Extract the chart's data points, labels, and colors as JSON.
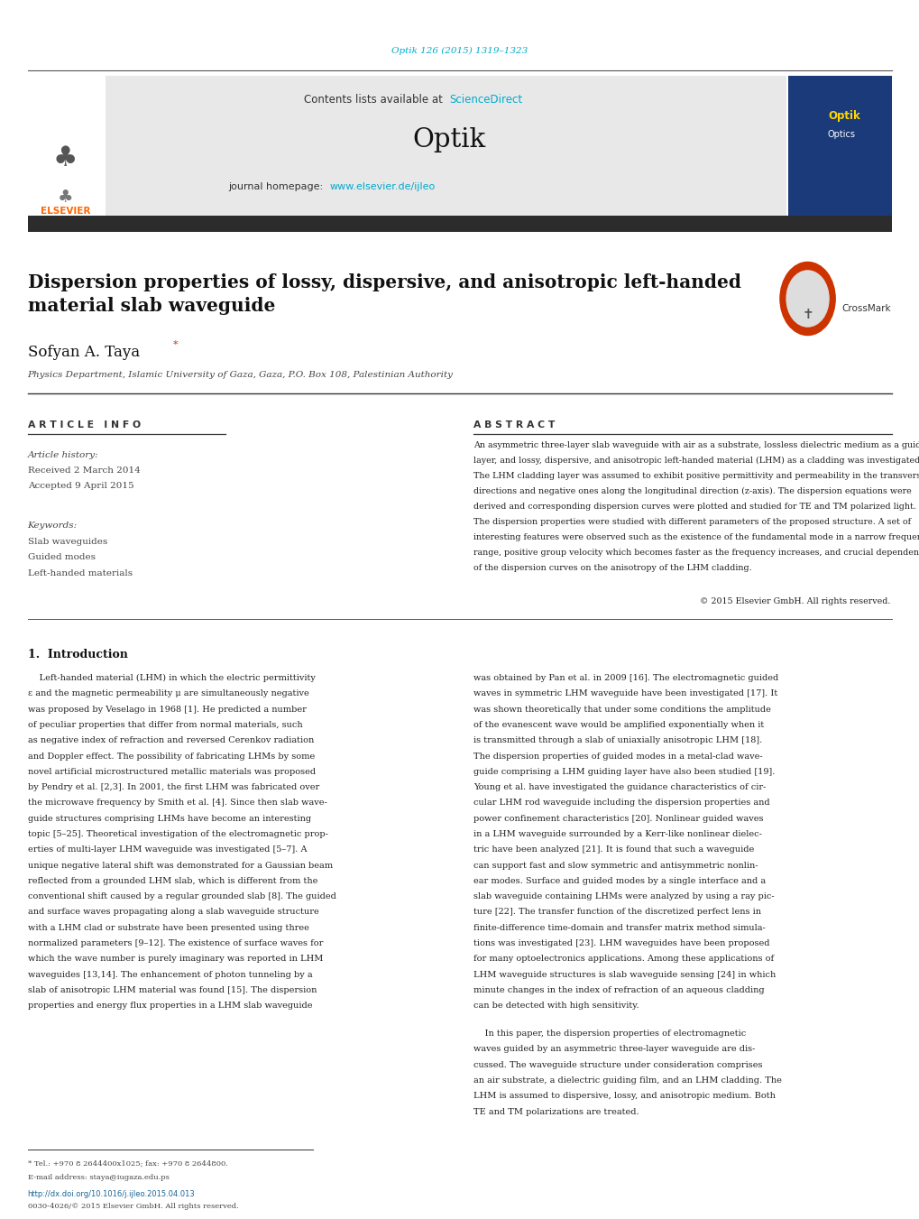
{
  "page_width": 10.2,
  "page_height": 13.51,
  "bg_color": "#ffffff",
  "top_citation": "Optik 126 (2015) 1319–1323",
  "citation_color": "#00aacc",
  "journal_title": "Optik",
  "contents_text": "Contents lists available at ",
  "sciencedirect_text": "ScienceDirect",
  "sciencedirect_color": "#00aacc",
  "homepage_text": "journal homepage: ",
  "homepage_url": "www.elsevier.de/ijleo",
  "homepage_url_color": "#00aacc",
  "header_bg": "#e8e8e8",
  "dark_bar_color": "#2c2c2c",
  "elsevier_color": "#ff6600",
  "paper_title": "Dispersion properties of lossy, dispersive, and anisotropic left-handed\nmaterial slab waveguide",
  "author_name": "Sofyan A. Taya",
  "affiliation": "Physics Department, Islamic University of Gaza, Gaza, P.O. Box 108, Palestinian Authority",
  "article_info_title": "A R T I C L E   I N F O",
  "abstract_title": "A B S T R A C T",
  "article_history_label": "Article history:",
  "received_text": "Received 2 March 2014",
  "accepted_text": "Accepted 9 April 2015",
  "keywords_label": "Keywords:",
  "keywords": [
    "Slab waveguides",
    "Guided modes",
    "Left-handed materials"
  ],
  "copyright_text": "© 2015 Elsevier GmbH. All rights reserved.",
  "section1_title": "1.  Introduction",
  "footnote1": "* Tel.: +970 8 2644400x1025; fax: +970 8 2644800.",
  "footnote2": "E-mail address: staya@iugaza.edu.ps",
  "doi_text": "http://dx.doi.org/10.1016/j.ijleo.2015.04.013",
  "issn_text": "0030-4026/© 2015 Elsevier GmbH. All rights reserved.",
  "link_color": "#1a6496",
  "abstract_lines": [
    "An asymmetric three-layer slab waveguide with air as a substrate, lossless dielectric medium as a guiding",
    "layer, and lossy, dispersive, and anisotropic left-handed material (LHM) as a cladding was investigated.",
    "The LHM cladding layer was assumed to exhibit positive permittivity and permeability in the transverse",
    "directions and negative ones along the longitudinal direction (z-axis). The dispersion equations were",
    "derived and corresponding dispersion curves were plotted and studied for TE and TM polarized light.",
    "The dispersion properties were studied with different parameters of the proposed structure. A set of",
    "interesting features were observed such as the existence of the fundamental mode in a narrow frequency",
    "range, positive group velocity which becomes faster as the frequency increases, and crucial dependence",
    "of the dispersion curves on the anisotropy of the LHM cladding."
  ],
  "intro_left_lines": [
    "    Left-handed material (LHM) in which the electric permittivity",
    "ε and the magnetic permeability μ are simultaneously negative",
    "was proposed by Veselago in 1968 [1]. He predicted a number",
    "of peculiar properties that differ from normal materials, such",
    "as negative index of refraction and reversed Cerenkov radiation",
    "and Doppler effect. The possibility of fabricating LHMs by some",
    "novel artificial microstructured metallic materials was proposed",
    "by Pendry et al. [2,3]. In 2001, the first LHM was fabricated over",
    "the microwave frequency by Smith et al. [4]. Since then slab wave-",
    "guide structures comprising LHMs have become an interesting",
    "topic [5–25]. Theoretical investigation of the electromagnetic prop-",
    "erties of multi-layer LHM waveguide was investigated [5–7]. A",
    "unique negative lateral shift was demonstrated for a Gaussian beam",
    "reflected from a grounded LHM slab, which is different from the",
    "conventional shift caused by a regular grounded slab [8]. The guided",
    "and surface waves propagating along a slab waveguide structure",
    "with a LHM clad or substrate have been presented using three",
    "normalized parameters [9–12]. The existence of surface waves for",
    "which the wave number is purely imaginary was reported in LHM",
    "waveguides [13,14]. The enhancement of photon tunneling by a",
    "slab of anisotropic LHM material was found [15]. The dispersion",
    "properties and energy flux properties in a LHM slab waveguide"
  ],
  "intro_right_lines": [
    "was obtained by Pan et al. in 2009 [16]. The electromagnetic guided",
    "waves in symmetric LHM waveguide have been investigated [17]. It",
    "was shown theoretically that under some conditions the amplitude",
    "of the evanescent wave would be amplified exponentially when it",
    "is transmitted through a slab of uniaxially anisotropic LHM [18].",
    "The dispersion properties of guided modes in a metal-clad wave-",
    "guide comprising a LHM guiding layer have also been studied [19].",
    "Young et al. have investigated the guidance characteristics of cir-",
    "cular LHM rod waveguide including the dispersion properties and",
    "power confinement characteristics [20]. Nonlinear guided waves",
    "in a LHM waveguide surrounded by a Kerr-like nonlinear dielec-",
    "tric have been analyzed [21]. It is found that such a waveguide",
    "can support fast and slow symmetric and antisymmetric nonlin-",
    "ear modes. Surface and guided modes by a single interface and a",
    "slab waveguide containing LHMs were analyzed by using a ray pic-",
    "ture [22]. The transfer function of the discretized perfect lens in",
    "finite-difference time-domain and transfer matrix method simula-",
    "tions was investigated [23]. LHM waveguides have been proposed",
    "for many optoelectronics applications. Among these applications of",
    "LHM waveguide structures is slab waveguide sensing [24] in which",
    "minute changes in the index of refraction of an aqueous cladding",
    "can be detected with high sensitivity."
  ],
  "intro_right2_lines": [
    "    In this paper, the dispersion properties of electromagnetic",
    "waves guided by an asymmetric three-layer waveguide are dis-",
    "cussed. The waveguide structure under consideration comprises",
    "an air substrate, a dielectric guiding film, and an LHM cladding. The",
    "LHM is assumed to dispersive, lossy, and anisotropic medium. Both",
    "TE and TM polarizations are treated."
  ]
}
